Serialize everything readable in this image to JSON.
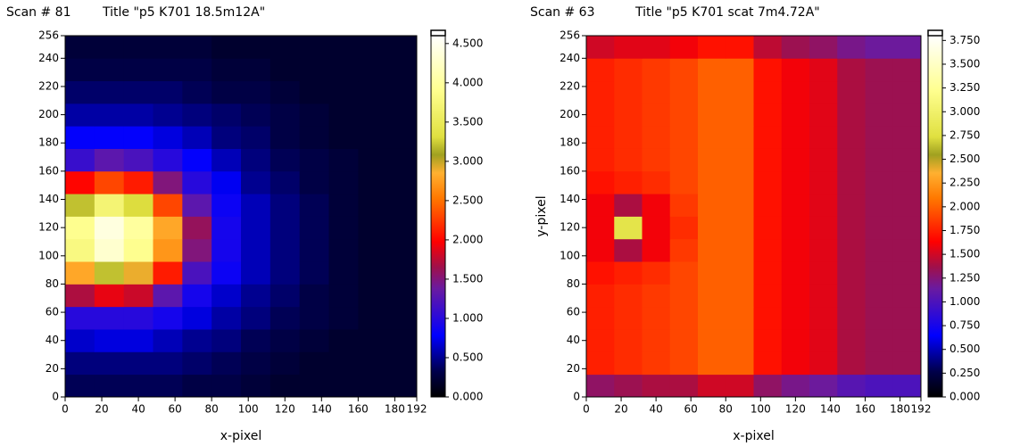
{
  "chart_data": [
    {
      "type": "heatmap",
      "scan": "Scan # 81",
      "title": "Title \"p5 K701 18.5m12A\"",
      "x_label": "x-pixel",
      "x": [
        8,
        24,
        40,
        56,
        72,
        88,
        104,
        120,
        136,
        152,
        168,
        184
      ],
      "y": [
        8,
        24,
        40,
        56,
        72,
        88,
        104,
        120,
        136,
        152,
        168,
        184,
        200,
        216,
        232,
        248
      ],
      "z": [
        [
          0.35,
          0.35,
          0.35,
          0.35,
          0.3,
          0.3,
          0.25,
          0.2,
          0.2,
          0.2,
          0.2,
          0.2
        ],
        [
          0.45,
          0.45,
          0.45,
          0.45,
          0.4,
          0.35,
          0.3,
          0.25,
          0.2,
          0.2,
          0.2,
          0.2
        ],
        [
          0.65,
          0.7,
          0.7,
          0.6,
          0.5,
          0.45,
          0.35,
          0.3,
          0.25,
          0.2,
          0.2,
          0.2
        ],
        [
          1.0,
          1.0,
          1.0,
          0.9,
          0.7,
          0.55,
          0.45,
          0.35,
          0.3,
          0.25,
          0.2,
          0.2
        ],
        [
          1.7,
          1.9,
          1.8,
          1.3,
          0.9,
          0.65,
          0.5,
          0.4,
          0.3,
          0.25,
          0.2,
          0.2
        ],
        [
          2.8,
          3.2,
          2.9,
          2.1,
          1.2,
          0.85,
          0.6,
          0.45,
          0.35,
          0.25,
          0.2,
          0.2
        ],
        [
          3.8,
          4.3,
          3.9,
          2.7,
          1.5,
          0.9,
          0.6,
          0.45,
          0.35,
          0.25,
          0.2,
          0.2
        ],
        [
          3.9,
          4.4,
          4.0,
          2.8,
          1.6,
          0.9,
          0.6,
          0.45,
          0.35,
          0.25,
          0.2,
          0.2
        ],
        [
          3.2,
          3.7,
          3.3,
          2.3,
          1.3,
          0.85,
          0.6,
          0.45,
          0.35,
          0.25,
          0.2,
          0.2
        ],
        [
          2.0,
          2.3,
          2.1,
          1.5,
          1.0,
          0.75,
          0.5,
          0.4,
          0.3,
          0.25,
          0.2,
          0.2
        ],
        [
          1.1,
          1.3,
          1.2,
          1.0,
          0.8,
          0.6,
          0.45,
          0.35,
          0.3,
          0.25,
          0.2,
          0.2
        ],
        [
          0.8,
          0.8,
          0.8,
          0.7,
          0.6,
          0.45,
          0.4,
          0.3,
          0.25,
          0.2,
          0.2,
          0.2
        ],
        [
          0.55,
          0.55,
          0.55,
          0.5,
          0.45,
          0.4,
          0.35,
          0.3,
          0.25,
          0.2,
          0.2,
          0.2
        ],
        [
          0.4,
          0.4,
          0.4,
          0.4,
          0.35,
          0.3,
          0.3,
          0.25,
          0.2,
          0.2,
          0.2,
          0.2
        ],
        [
          0.3,
          0.3,
          0.3,
          0.3,
          0.3,
          0.25,
          0.25,
          0.2,
          0.2,
          0.2,
          0.2,
          0.2
        ],
        [
          0.25,
          0.25,
          0.25,
          0.25,
          0.25,
          0.2,
          0.2,
          0.2,
          0.2,
          0.2,
          0.2,
          0.2
        ]
      ],
      "xlim": [
        0,
        192
      ],
      "ylim": [
        0,
        256
      ],
      "xticks": [
        0,
        20,
        40,
        60,
        80,
        100,
        120,
        140,
        160,
        180,
        192
      ],
      "yticks": [
        0,
        20,
        40,
        60,
        80,
        100,
        120,
        140,
        160,
        180,
        200,
        220,
        240,
        256
      ],
      "clim": [
        0,
        4.6
      ],
      "cticks": [
        {
          "value": 0,
          "label": "0.000"
        },
        {
          "value": 0.5,
          "label": "0.500"
        },
        {
          "value": 1,
          "label": "1.000"
        },
        {
          "value": 1.5,
          "label": "1.500"
        },
        {
          "value": 2,
          "label": "2.000"
        },
        {
          "value": 2.5,
          "label": "2.500"
        },
        {
          "value": 3,
          "label": "3.000"
        },
        {
          "value": 3.5,
          "label": "3.500"
        },
        {
          "value": 4,
          "label": "4.000"
        },
        {
          "value": 4.5,
          "label": "4.500"
        }
      ],
      "colormap": {
        "stops": [
          0,
          0.07,
          0.17,
          0.3,
          0.36,
          0.43,
          0.55,
          0.62,
          0.67,
          0.72,
          0.85,
          1
        ],
        "colors": [
          "#000000",
          "#00004a",
          "#0000ff",
          "#6a1aa0",
          "#a0104a",
          "#ff0000",
          "#ff7800",
          "#ffb030",
          "#a0a020",
          "#e0e040",
          "#ffff90",
          "#ffffff"
        ]
      }
    },
    {
      "type": "heatmap",
      "scan": "Scan # 63",
      "title": "Title \"p5 K701 scat 7m4.72A\"",
      "x_label": "x-pixel",
      "y_label": "y-pixel",
      "x": [
        8,
        24,
        40,
        56,
        72,
        88,
        104,
        120,
        136,
        152,
        168,
        184
      ],
      "y": [
        8,
        24,
        40,
        56,
        72,
        88,
        104,
        120,
        136,
        152,
        168,
        184,
        200,
        216,
        232,
        248
      ],
      "z": [
        [
          1.3,
          1.35,
          1.4,
          1.4,
          1.5,
          1.5,
          1.3,
          1.2,
          1.15,
          1.05,
          1.0,
          1.0
        ],
        [
          1.75,
          1.8,
          1.85,
          1.9,
          2.0,
          2.0,
          1.7,
          1.6,
          1.55,
          1.4,
          1.35,
          1.35
        ],
        [
          1.75,
          1.8,
          1.85,
          1.9,
          2.0,
          2.0,
          1.7,
          1.6,
          1.55,
          1.4,
          1.35,
          1.35
        ],
        [
          1.75,
          1.8,
          1.85,
          1.9,
          2.0,
          2.0,
          1.7,
          1.6,
          1.55,
          1.4,
          1.35,
          1.35
        ],
        [
          1.75,
          1.8,
          1.85,
          1.9,
          2.0,
          2.0,
          1.7,
          1.6,
          1.55,
          1.4,
          1.35,
          1.35
        ],
        [
          1.7,
          1.75,
          1.8,
          1.9,
          2.0,
          2.0,
          1.7,
          1.6,
          1.55,
          1.4,
          1.35,
          1.35
        ],
        [
          1.6,
          1.4,
          1.6,
          1.85,
          2.0,
          2.0,
          1.7,
          1.6,
          1.55,
          1.4,
          1.35,
          1.35
        ],
        [
          1.6,
          2.8,
          1.6,
          1.8,
          2.0,
          2.0,
          1.7,
          1.6,
          1.55,
          1.4,
          1.35,
          1.35
        ],
        [
          1.6,
          1.4,
          1.6,
          1.85,
          2.0,
          2.0,
          1.7,
          1.6,
          1.55,
          1.4,
          1.35,
          1.35
        ],
        [
          1.7,
          1.75,
          1.8,
          1.9,
          2.0,
          2.0,
          1.7,
          1.6,
          1.55,
          1.4,
          1.35,
          1.35
        ],
        [
          1.75,
          1.8,
          1.85,
          1.9,
          2.0,
          2.0,
          1.7,
          1.6,
          1.55,
          1.4,
          1.35,
          1.35
        ],
        [
          1.75,
          1.8,
          1.85,
          1.9,
          2.0,
          2.0,
          1.7,
          1.6,
          1.55,
          1.4,
          1.35,
          1.35
        ],
        [
          1.75,
          1.8,
          1.85,
          1.9,
          2.0,
          2.0,
          1.7,
          1.6,
          1.55,
          1.4,
          1.35,
          1.35
        ],
        [
          1.75,
          1.8,
          1.85,
          1.9,
          2.0,
          2.0,
          1.7,
          1.6,
          1.55,
          1.4,
          1.35,
          1.35
        ],
        [
          1.75,
          1.8,
          1.85,
          1.9,
          2.0,
          2.0,
          1.7,
          1.6,
          1.55,
          1.4,
          1.35,
          1.35
        ],
        [
          1.5,
          1.55,
          1.55,
          1.6,
          1.7,
          1.7,
          1.45,
          1.35,
          1.3,
          1.2,
          1.15,
          1.15
        ]
      ],
      "xlim": [
        0,
        192
      ],
      "ylim": [
        0,
        256
      ],
      "xticks": [
        0,
        20,
        40,
        60,
        80,
        100,
        120,
        140,
        160,
        180,
        192
      ],
      "yticks": [
        0,
        20,
        40,
        60,
        80,
        100,
        120,
        140,
        160,
        180,
        200,
        220,
        240,
        256
      ],
      "clim": [
        0,
        3.8
      ],
      "cticks": [
        {
          "value": 0,
          "label": "0.000"
        },
        {
          "value": 0.25,
          "label": "0.250"
        },
        {
          "value": 0.5,
          "label": "0.500"
        },
        {
          "value": 0.75,
          "label": "0.750"
        },
        {
          "value": 1,
          "label": "1.000"
        },
        {
          "value": 1.25,
          "label": "1.250"
        },
        {
          "value": 1.5,
          "label": "1.500"
        },
        {
          "value": 1.75,
          "label": "1.750"
        },
        {
          "value": 2,
          "label": "2.000"
        },
        {
          "value": 2.25,
          "label": "2.250"
        },
        {
          "value": 2.5,
          "label": "2.500"
        },
        {
          "value": 2.75,
          "label": "2.750"
        },
        {
          "value": 3,
          "label": "3.000"
        },
        {
          "value": 3.25,
          "label": "3.250"
        },
        {
          "value": 3.5,
          "label": "3.500"
        },
        {
          "value": 3.75,
          "label": "3.750"
        }
      ],
      "colormap": {
        "stops": [
          0,
          0.07,
          0.17,
          0.3,
          0.36,
          0.43,
          0.55,
          0.62,
          0.67,
          0.72,
          0.85,
          1
        ],
        "colors": [
          "#000000",
          "#00004a",
          "#0000ff",
          "#6a1aa0",
          "#a0104a",
          "#ff0000",
          "#ff7800",
          "#ffb030",
          "#a0a020",
          "#e0e040",
          "#ffff90",
          "#ffffff"
        ]
      }
    }
  ]
}
